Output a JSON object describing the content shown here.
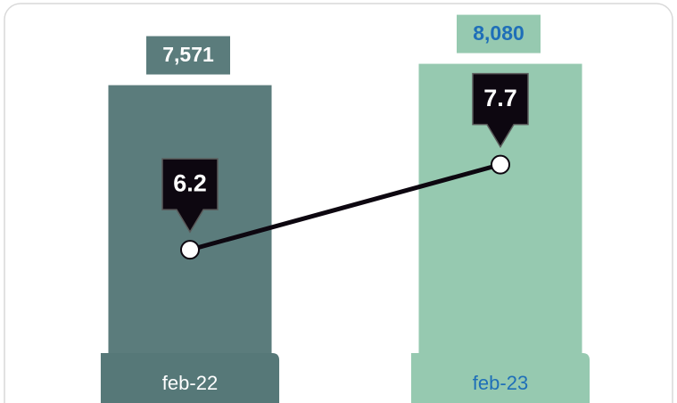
{
  "chart_data": {
    "type": "bar",
    "categories": [
      "feb-22",
      "feb-23"
    ],
    "category_colors": [
      "#567878",
      "#96c9b0"
    ],
    "category_text_colors": [
      "#ffffff",
      "#1f6fb8"
    ],
    "series": [
      {
        "type": "bar",
        "colors": [
          "#5b7c7c",
          "#96c9b0"
        ],
        "values": [
          7571,
          8080
        ],
        "value_labels": [
          "7,571",
          "8,080"
        ],
        "label_text_colors": [
          "#ffffff",
          "#1f6fb8"
        ]
      },
      {
        "type": "line",
        "axis": "y2",
        "color": "#0d0710",
        "values": [
          6.2,
          7.7
        ]
      }
    ],
    "ylim": [
      0,
      9600
    ],
    "y2lim": [
      3.5,
      10.6
    ]
  }
}
